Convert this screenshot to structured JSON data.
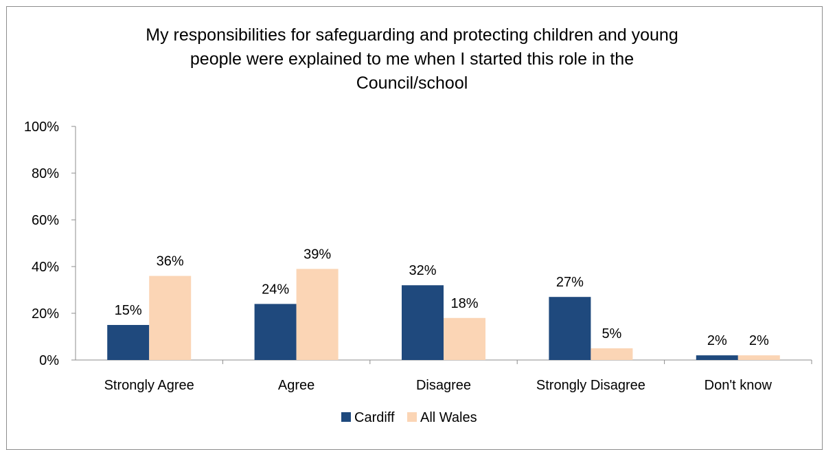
{
  "chart_data": {
    "type": "bar",
    "title_lines": [
      "My responsibilities for safeguarding and protecting children and young",
      "people were explained to me when I started this role in the",
      "Council/school"
    ],
    "categories": [
      "Strongly Agree",
      "Agree",
      "Disagree",
      "Strongly Disagree",
      "Don't know"
    ],
    "series": [
      {
        "name": "Cardiff",
        "values": [
          15,
          24,
          32,
          27,
          2
        ],
        "labels": [
          "15%",
          "24%",
          "32%",
          "27%",
          "2%"
        ],
        "color": "#1f497d"
      },
      {
        "name": "All Wales",
        "values": [
          36,
          39,
          18,
          5,
          2
        ],
        "labels": [
          "36%",
          "39%",
          "18%",
          "5%",
          "2%"
        ],
        "color": "#fbd5b5"
      }
    ],
    "yticks": [
      "0%",
      "20%",
      "40%",
      "60%",
      "80%",
      "100%"
    ],
    "ylim": [
      0,
      100
    ],
    "legend_position": "bottom",
    "grid": false
  }
}
